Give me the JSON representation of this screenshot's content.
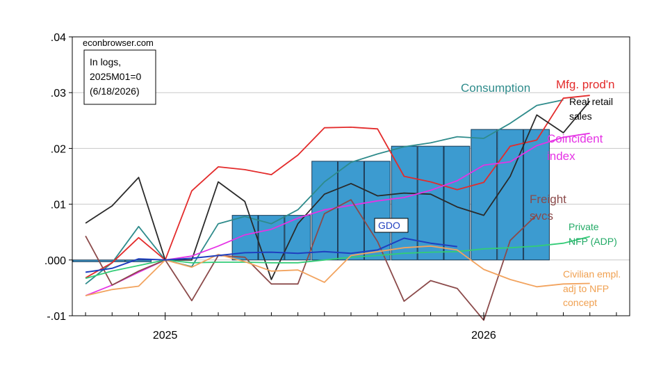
{
  "chart_data": {
    "type": "line",
    "source_label": "econbrowser.com",
    "note_lines": [
      "In logs,",
      "2025M01=0",
      "(6/18/2026)"
    ],
    "y_ticks": [
      ".04",
      ".03",
      ".02",
      ".01",
      ".000",
      "-.01"
    ],
    "y_tick_values": [
      0.04,
      0.03,
      0.02,
      0.01,
      0.0,
      -0.01
    ],
    "ylim": [
      -0.01,
      0.04
    ],
    "x_tick_labels": [
      {
        "label": "2025",
        "month": 0
      },
      {
        "label": "2026",
        "month": 12
      }
    ],
    "xlim": [
      -3.5,
      17.5
    ],
    "grid": true,
    "bars": {
      "name": "GDO",
      "color": "#3c9bd0",
      "quarters": [
        {
          "start": -3,
          "value": 0.0
        },
        {
          "start": 3,
          "value": 0.008
        },
        {
          "start": 6,
          "value": 0.0177
        },
        {
          "start": 9,
          "value": 0.0204
        },
        {
          "start": 12,
          "value": 0.0234
        }
      ]
    },
    "series": [
      {
        "name": "Consumption",
        "color": "#2e8b8b",
        "x": [
          -3,
          -2,
          -1,
          0,
          1,
          2,
          3,
          4,
          5,
          6,
          7,
          8,
          9,
          10,
          11,
          12,
          13,
          14,
          15
        ],
        "values": [
          -0.0043,
          -0.0005,
          0.006,
          0.0,
          -0.0012,
          0.0065,
          0.0078,
          0.0065,
          0.009,
          0.014,
          0.0175,
          0.019,
          0.0203,
          0.021,
          0.0221,
          0.0218,
          0.0245,
          0.0277,
          0.0287
        ]
      },
      {
        "name": "Mfg. prod'n",
        "color": "#e32b2b",
        "x": [
          -3,
          -2,
          -1,
          0,
          1,
          2,
          3,
          4,
          5,
          6,
          7,
          8,
          9,
          10,
          11,
          12,
          13,
          14,
          15,
          16
        ],
        "values": [
          -0.0032,
          -0.0005,
          0.004,
          0.0,
          0.0124,
          0.0167,
          0.0162,
          0.0153,
          0.0188,
          0.0237,
          0.0238,
          0.0235,
          0.015,
          0.014,
          0.0126,
          0.0139,
          0.0204,
          0.0215,
          0.029,
          0.0295
        ]
      },
      {
        "name": "Real retail sales",
        "color": "#2a2a2a",
        "x": [
          -3,
          -2,
          -1,
          0,
          1,
          2,
          3,
          4,
          5,
          6,
          7,
          8,
          9,
          10,
          11,
          12,
          13,
          14,
          15,
          16
        ],
        "values": [
          0.0066,
          0.0097,
          0.0148,
          0.0,
          0.0,
          0.014,
          0.0105,
          -0.0035,
          0.0065,
          0.0118,
          0.0137,
          0.0115,
          0.012,
          0.0118,
          0.0095,
          0.008,
          0.015,
          0.026,
          0.0228,
          0.0285
        ]
      },
      {
        "name": "Coincident index",
        "color": "#e533e5",
        "x": [
          -3,
          -2,
          -1,
          0,
          1,
          2,
          3,
          4,
          5,
          6,
          7,
          8,
          9,
          10,
          11,
          12,
          13,
          14,
          15,
          16
        ],
        "values": [
          -0.0064,
          -0.0045,
          -0.0022,
          0.0,
          0.0007,
          0.0025,
          0.0045,
          0.0055,
          0.0075,
          0.009,
          0.0098,
          0.0106,
          0.0112,
          0.0125,
          0.0142,
          0.017,
          0.0176,
          0.0205,
          0.022,
          0.0227
        ]
      },
      {
        "name": "Freight svcs",
        "color": "#8b4a4a",
        "x": [
          -3,
          -2,
          -1,
          0,
          1,
          2,
          3,
          4,
          5,
          6,
          7,
          8,
          9,
          10,
          11,
          12,
          13,
          14
        ],
        "values": [
          0.0043,
          -0.0045,
          -0.002,
          0.0,
          -0.0073,
          0.0008,
          0.0005,
          -0.0043,
          -0.0043,
          0.0083,
          0.0108,
          0.0033,
          -0.0074,
          -0.0037,
          -0.0051,
          -0.0108,
          0.0035,
          0.0081
        ]
      },
      {
        "name": "Private NFP (ADP)",
        "color": "#33cc77",
        "x": [
          -3,
          -2,
          -1,
          0,
          1,
          2,
          3,
          4,
          5,
          6,
          7,
          8,
          9,
          10,
          11,
          12,
          13,
          14,
          15,
          16
        ],
        "values": [
          -0.0033,
          -0.002,
          -0.001,
          0.0,
          -0.0005,
          -0.0004,
          -0.0004,
          -0.0005,
          -0.0005,
          0.0,
          0.0005,
          0.0008,
          0.0012,
          0.0014,
          0.0015,
          0.002,
          0.0022,
          0.0025,
          0.003,
          0.0042
        ]
      },
      {
        "name": "Civilian empl. adj to NFP concept",
        "color": "#f2a35e",
        "x": [
          -3,
          -2,
          -1,
          0,
          1,
          2,
          3,
          4,
          5,
          6,
          7,
          8,
          9,
          10,
          11,
          12,
          13,
          14,
          15,
          16
        ],
        "values": [
          -0.0064,
          -0.0053,
          -0.0047,
          0.0,
          -0.0013,
          0.001,
          -0.0003,
          -0.002,
          -0.0018,
          -0.004,
          0.0008,
          0.0015,
          0.0022,
          0.0025,
          0.0018,
          -0.0017,
          -0.0035,
          -0.0048,
          -0.0043,
          -0.0042
        ]
      },
      {
        "name": "GDO",
        "color": "#1f3fbf",
        "x": [
          -3,
          -2,
          -1,
          0,
          1,
          2,
          3,
          4,
          5,
          6,
          7,
          8,
          9,
          10,
          11
        ],
        "values": [
          -0.0022,
          -0.0015,
          0.0002,
          0.0,
          0.0003,
          0.0008,
          0.0013,
          0.0014,
          0.0012,
          0.0015,
          0.0012,
          0.0018,
          0.0039,
          0.003,
          0.0024
        ]
      }
    ],
    "labels": [
      {
        "text": "Consumption",
        "color": "#2e8b8b"
      },
      {
        "text": "Mfg. prod'n",
        "color": "#e32b2b"
      },
      {
        "text": "Real retail",
        "color": "#000000"
      },
      {
        "text": "sales",
        "color": "#000000"
      },
      {
        "text": "Coincident",
        "color": "#e533e5"
      },
      {
        "text": "index",
        "color": "#e533e5"
      },
      {
        "text": "Freight",
        "color": "#8b4a4a"
      },
      {
        "text": "svcs",
        "color": "#8b4a4a"
      },
      {
        "text": "Private",
        "color": "#22aa66"
      },
      {
        "text": "NFP (ADP)",
        "color": "#22aa66"
      },
      {
        "text": "GDO",
        "color": "#1f3fbf"
      },
      {
        "text": "Civilian empl.",
        "color": "#f0a050"
      },
      {
        "text": "adj to NFP",
        "color": "#f0a050"
      },
      {
        "text": "concept",
        "color": "#f0a050"
      }
    ]
  }
}
